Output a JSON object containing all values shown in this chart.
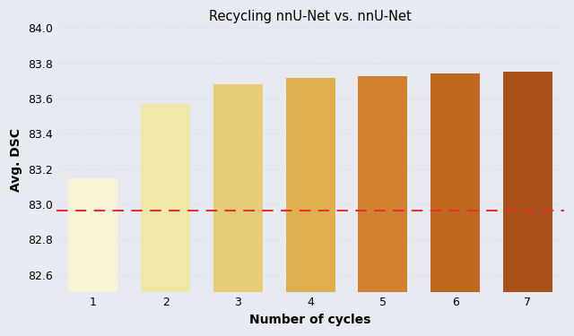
{
  "title": "Recycling nnU-Net vs. nnU-Net",
  "xlabel": "Number of cycles",
  "ylabel": "Avg. DSC",
  "categories": [
    1,
    2,
    3,
    4,
    5,
    6,
    7
  ],
  "values": [
    83.15,
    83.57,
    83.68,
    83.72,
    83.73,
    83.745,
    83.755
  ],
  "bar_colors": [
    "#f8f4d8",
    "#f0e8a8",
    "#e8cc78",
    "#e0b050",
    "#d08030",
    "#c06820",
    "#a85018"
  ],
  "baseline_y": 82.965,
  "baseline_color": "#e83030",
  "ylim": [
    82.5,
    84.0
  ],
  "yticks": [
    82.6,
    82.8,
    83.0,
    83.2,
    83.4,
    83.6,
    83.8,
    84.0
  ],
  "background_color": "#e8eaf2",
  "grid_color": "#d8dae8",
  "title_fontsize": 10.5,
  "label_fontsize": 10,
  "tick_fontsize": 9,
  "bar_width": 0.68
}
